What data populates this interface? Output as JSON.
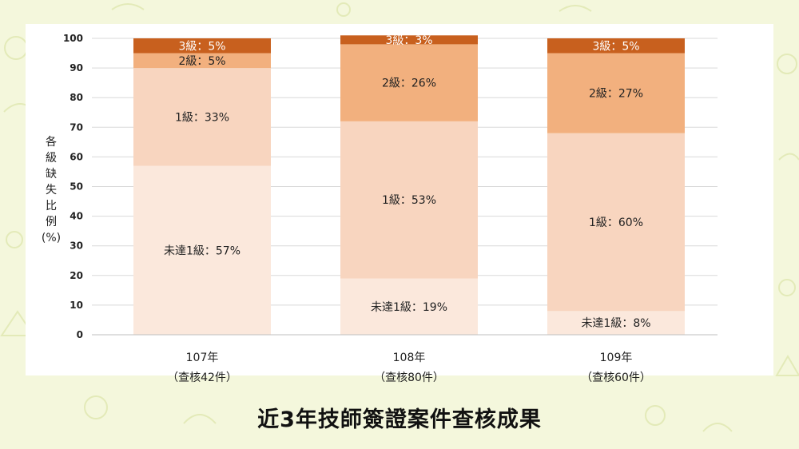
{
  "colors": {
    "background": "#f4f7dc",
    "panel": "#ffffff",
    "level3": "#c8601e",
    "level2": "#f2b07e",
    "level1": "#f8d5bf",
    "below1": "#fbe8dc",
    "gridline": "#d9d9d9",
    "text": "#222222"
  },
  "chart_data": {
    "type": "bar",
    "stacked": true,
    "title": "近3年技師簽證案件查核成果",
    "ylabel": "各級缺失比例(%)",
    "ylim": [
      0,
      100
    ],
    "yticks": [
      "0",
      "10",
      "20",
      "30",
      "40",
      "50",
      "60",
      "70",
      "80",
      "90",
      "100"
    ],
    "grid": true,
    "legend": "none",
    "categories": [
      {
        "year": "107年",
        "note": "（查核42件）"
      },
      {
        "year": "108年",
        "note": "（查核80件）"
      },
      {
        "year": "109年",
        "note": "（查核60件）"
      }
    ],
    "series": [
      {
        "key": "below1",
        "values": [
          57,
          19,
          8
        ],
        "labels": [
          "未達1級：57%",
          "未達1級：19%",
          "未達1級：8%"
        ]
      },
      {
        "key": "level1",
        "values": [
          33,
          53,
          60
        ],
        "labels": [
          "1級：33%",
          "1級：53%",
          "1級：60%"
        ]
      },
      {
        "key": "level2",
        "values": [
          5,
          26,
          27
        ],
        "labels": [
          "2級：5%",
          "2級：26%",
          "2級：27%"
        ]
      },
      {
        "key": "level3",
        "values": [
          5,
          3,
          5
        ],
        "labels": [
          "3級：5%",
          "3級：3%",
          "3級：5%"
        ]
      }
    ]
  }
}
